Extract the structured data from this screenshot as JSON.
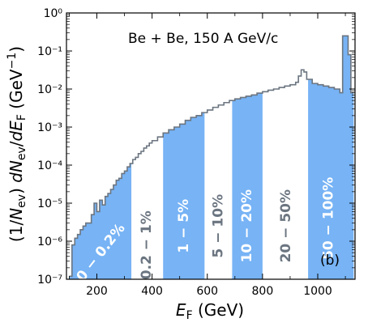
{
  "chart_data": {
    "type": "histogram",
    "title": "",
    "annotation": "Be + Be, 150 A GeV/c",
    "panel_label": "(b)",
    "xlabel": "E_F (GeV)",
    "ylabel": "(1/N_ev) dN_ev/dE_F (GeV^-1)",
    "xlim": [
      90,
      1135
    ],
    "ylim": [
      1e-07,
      1
    ],
    "yscale": "log",
    "grid": false,
    "x_ticks": [
      200,
      400,
      600,
      800,
      1000
    ],
    "y_ticks": [
      {
        "value": 1e-07,
        "label": "10⁻⁷"
      },
      {
        "value": 1e-06,
        "label": "10⁻⁶"
      },
      {
        "value": 1e-05,
        "label": "10⁻⁵"
      },
      {
        "value": 0.0001,
        "label": "10⁻⁴"
      },
      {
        "value": 0.001,
        "label": "10⁻³"
      },
      {
        "value": 0.01,
        "label": "10⁻²"
      },
      {
        "value": 0.1,
        "label": "10⁻¹"
      },
      {
        "value": 1,
        "label": "10⁰"
      }
    ],
    "colors": {
      "band": "#77b3f5",
      "histogram": "#6b7580",
      "label_light": "#ffffff",
      "label_dark": "#6b7580"
    },
    "centrality_bands": [
      {
        "label": "0 − 0.2%",
        "x_min": 90,
        "x_max": 325,
        "shaded": true,
        "label_x": 215,
        "label_logy": -6.3,
        "label_rotation": -52
      },
      {
        "label": "0.2 − 1%",
        "x_min": 325,
        "x_max": 440,
        "shaded": false,
        "label_x": 380,
        "label_logy": -6.1,
        "label_rotation": -90
      },
      {
        "label": "1 − 5%",
        "x_min": 440,
        "x_max": 590,
        "shaded": true,
        "label_x": 515,
        "label_logy": -5.6,
        "label_rotation": -90
      },
      {
        "label": "5 − 10%",
        "x_min": 590,
        "x_max": 690,
        "shaded": false,
        "label_x": 640,
        "label_logy": -5.6,
        "label_rotation": -90
      },
      {
        "label": "10 − 20%",
        "x_min": 690,
        "x_max": 800,
        "shaded": true,
        "label_x": 745,
        "label_logy": -5.6,
        "label_rotation": -90
      },
      {
        "label": "20 − 50%",
        "x_min": 800,
        "x_max": 965,
        "shaded": false,
        "label_x": 885,
        "label_logy": -5.6,
        "label_rotation": -90
      },
      {
        "label": "50 − 100%",
        "x_min": 965,
        "x_max": 1135,
        "shaded": true,
        "label_x": 1040,
        "label_logy": -5.4,
        "label_rotation": -90
      }
    ],
    "curve_points": [
      [
        100,
        1.2e-07
      ],
      [
        110,
        8e-07
      ],
      [
        120,
        1.2e-06
      ],
      [
        130,
        1.5e-06
      ],
      [
        140,
        2e-06
      ],
      [
        150,
        2.5e-06
      ],
      [
        160,
        3e-06
      ],
      [
        170,
        3e-06
      ],
      [
        180,
        5e-06
      ],
      [
        190,
        1e-05
      ],
      [
        200,
        6e-06
      ],
      [
        210,
        1.2e-05
      ],
      [
        220,
        9e-06
      ],
      [
        230,
        1.5e-05
      ],
      [
        240,
        1.8e-05
      ],
      [
        250,
        2.3e-05
      ],
      [
        260,
        3e-05
      ],
      [
        270,
        4e-05
      ],
      [
        280,
        4.5e-05
      ],
      [
        290,
        6e-05
      ],
      [
        300,
        7e-05
      ],
      [
        310,
        9e-05
      ],
      [
        320,
        0.00011
      ],
      [
        330,
        0.00014
      ],
      [
        340,
        0.00016
      ],
      [
        350,
        0.0002
      ],
      [
        360,
        0.00023
      ],
      [
        370,
        0.00028
      ],
      [
        380,
        0.00032
      ],
      [
        390,
        0.00038
      ],
      [
        400,
        0.00044
      ],
      [
        420,
        0.00055
      ],
      [
        440,
        0.0007
      ],
      [
        460,
        0.00085
      ],
      [
        480,
        0.001
      ],
      [
        500,
        0.0012
      ],
      [
        520,
        0.0015
      ],
      [
        540,
        0.0018
      ],
      [
        560,
        0.002
      ],
      [
        580,
        0.0024
      ],
      [
        600,
        0.0028
      ],
      [
        620,
        0.0033
      ],
      [
        640,
        0.0038
      ],
      [
        660,
        0.0044
      ],
      [
        680,
        0.005
      ],
      [
        700,
        0.0055
      ],
      [
        720,
        0.006
      ],
      [
        740,
        0.0065
      ],
      [
        760,
        0.007
      ],
      [
        780,
        0.0078
      ],
      [
        800,
        0.0085
      ],
      [
        820,
        0.0093
      ],
      [
        840,
        0.01
      ],
      [
        860,
        0.011
      ],
      [
        880,
        0.012
      ],
      [
        900,
        0.013
      ],
      [
        920,
        0.015
      ],
      [
        930,
        0.022
      ],
      [
        940,
        0.032
      ],
      [
        950,
        0.028
      ],
      [
        960,
        0.018
      ],
      [
        980,
        0.014
      ],
      [
        1000,
        0.013
      ],
      [
        1020,
        0.012
      ],
      [
        1040,
        0.011
      ],
      [
        1060,
        0.01
      ],
      [
        1080,
        0.008
      ],
      [
        1090,
        0.25
      ],
      [
        1100,
        0.25
      ],
      [
        1110,
        0.08
      ],
      [
        1120,
        0.008
      ]
    ]
  }
}
